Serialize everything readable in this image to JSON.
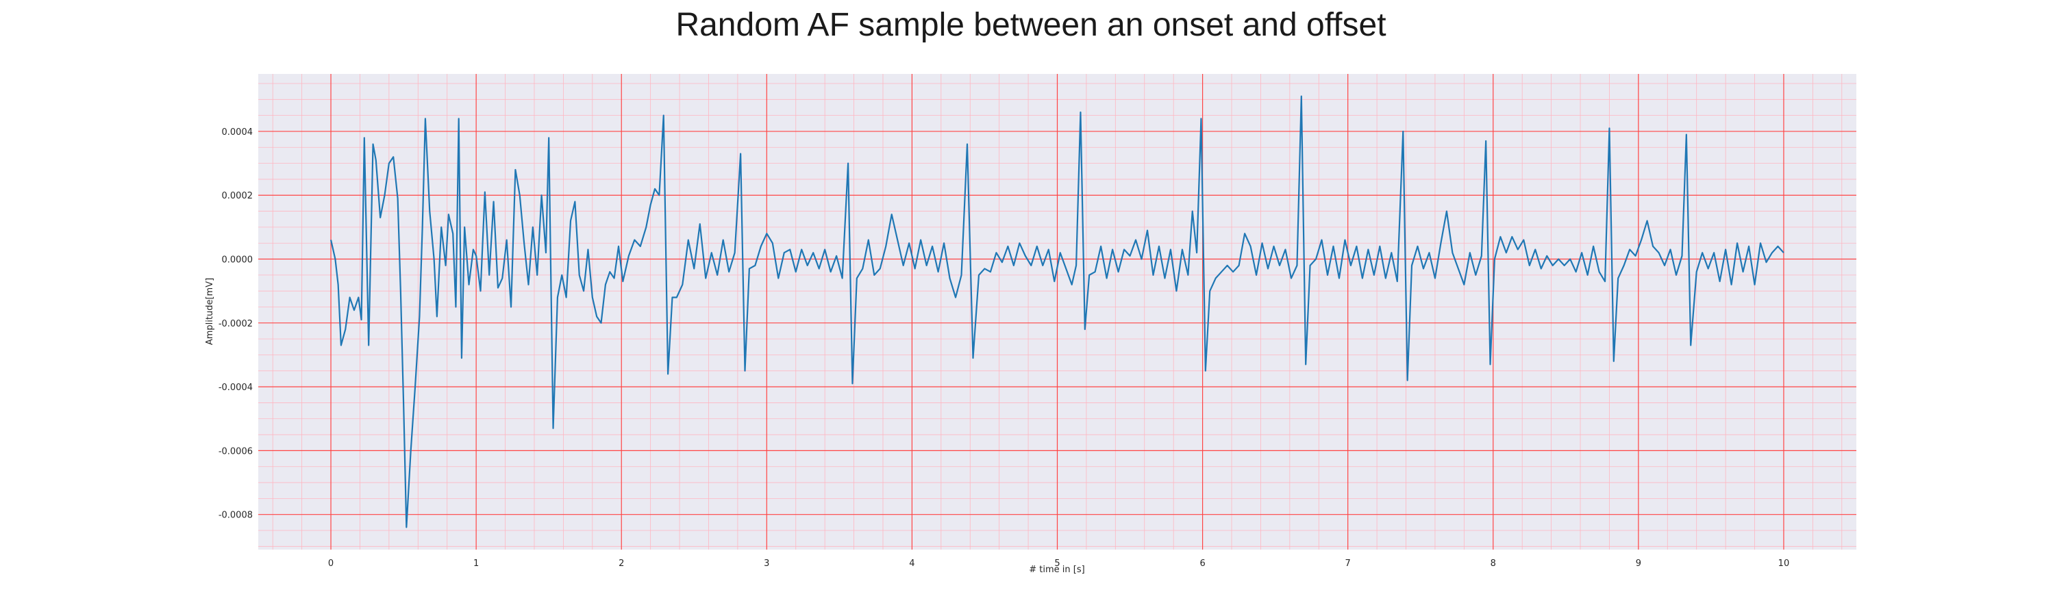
{
  "chart_data": {
    "type": "line",
    "title": "Random AF sample between an onset and offset",
    "xlabel": "# time in [s]",
    "ylabel": "Amplitude[mV]",
    "xlim": [
      -0.5,
      10.5
    ],
    "ylim": [
      -0.00091,
      0.00058
    ],
    "x_ticks": [
      0,
      1,
      2,
      3,
      4,
      5,
      6,
      7,
      8,
      9,
      10
    ],
    "x_tick_labels": [
      "0",
      "1",
      "2",
      "3",
      "4",
      "5",
      "6",
      "7",
      "8",
      "9",
      "10"
    ],
    "y_ticks": [
      0.0004,
      0.0002,
      0.0,
      -0.0002,
      -0.0004,
      -0.0006,
      -0.0008
    ],
    "y_tick_labels": [
      "0.0004",
      "0.0002",
      "0.0000",
      "-0.0002",
      "-0.0004",
      "-0.0006",
      "-0.0008"
    ],
    "grid": {
      "major": true,
      "minor": true
    },
    "colors": {
      "plot_background": "#eaeaf2",
      "major_grid": "#ff4444",
      "minor_grid": "#ffb6c1",
      "line": "#1f77b4",
      "text": "#262626"
    },
    "series": [
      {
        "points": [
          [
            0.0,
            6e-05
          ],
          [
            0.03,
            0.0
          ],
          [
            0.05,
            -8e-05
          ],
          [
            0.07,
            -0.00027
          ],
          [
            0.1,
            -0.00022
          ],
          [
            0.13,
            -0.00012
          ],
          [
            0.16,
            -0.00016
          ],
          [
            0.19,
            -0.00012
          ],
          [
            0.21,
            -0.00019
          ],
          [
            0.23,
            0.00038
          ],
          [
            0.26,
            -0.00027
          ],
          [
            0.29,
            0.00036
          ],
          [
            0.31,
            0.00031
          ],
          [
            0.34,
            0.00013
          ],
          [
            0.37,
            0.0002
          ],
          [
            0.4,
            0.0003
          ],
          [
            0.43,
            0.00032
          ],
          [
            0.46,
            0.00019
          ],
          [
            0.48,
            -0.0001
          ],
          [
            0.5,
            -0.00045
          ],
          [
            0.52,
            -0.00084
          ],
          [
            0.55,
            -0.0006
          ],
          [
            0.58,
            -0.0004
          ],
          [
            0.61,
            -0.00018
          ],
          [
            0.63,
            0.0001
          ],
          [
            0.65,
            0.00044
          ],
          [
            0.68,
            0.00015
          ],
          [
            0.71,
            0.0
          ],
          [
            0.73,
            -0.00018
          ],
          [
            0.76,
            0.0001
          ],
          [
            0.79,
            -2e-05
          ],
          [
            0.81,
            0.00014
          ],
          [
            0.84,
            8e-05
          ],
          [
            0.86,
            -0.00015
          ],
          [
            0.88,
            0.00044
          ],
          [
            0.9,
            -0.00031
          ],
          [
            0.92,
            0.0001
          ],
          [
            0.95,
            -8e-05
          ],
          [
            0.98,
            3e-05
          ],
          [
            1.0,
            1e-05
          ],
          [
            1.03,
            -0.0001
          ],
          [
            1.06,
            0.00021
          ],
          [
            1.09,
            -5e-05
          ],
          [
            1.12,
            0.00018
          ],
          [
            1.15,
            -9e-05
          ],
          [
            1.18,
            -6e-05
          ],
          [
            1.21,
            6e-05
          ],
          [
            1.24,
            -0.00015
          ],
          [
            1.27,
            0.00028
          ],
          [
            1.3,
            0.0002
          ],
          [
            1.33,
            5e-05
          ],
          [
            1.36,
            -8e-05
          ],
          [
            1.39,
            0.0001
          ],
          [
            1.42,
            -5e-05
          ],
          [
            1.45,
            0.0002
          ],
          [
            1.48,
            2e-05
          ],
          [
            1.5,
            0.00038
          ],
          [
            1.53,
            -0.00053
          ],
          [
            1.56,
            -0.00012
          ],
          [
            1.59,
            -5e-05
          ],
          [
            1.62,
            -0.00012
          ],
          [
            1.65,
            0.00012
          ],
          [
            1.68,
            0.00018
          ],
          [
            1.71,
            -5e-05
          ],
          [
            1.74,
            -0.0001
          ],
          [
            1.77,
            3e-05
          ],
          [
            1.8,
            -0.00012
          ],
          [
            1.83,
            -0.00018
          ],
          [
            1.86,
            -0.0002
          ],
          [
            1.89,
            -8e-05
          ],
          [
            1.92,
            -4e-05
          ],
          [
            1.95,
            -6e-05
          ],
          [
            1.98,
            4e-05
          ],
          [
            2.01,
            -7e-05
          ],
          [
            2.05,
            1e-05
          ],
          [
            2.09,
            6e-05
          ],
          [
            2.13,
            4e-05
          ],
          [
            2.17,
            0.0001
          ],
          [
            2.2,
            0.00017
          ],
          [
            2.23,
            0.00022
          ],
          [
            2.26,
            0.0002
          ],
          [
            2.29,
            0.00045
          ],
          [
            2.32,
            -0.00036
          ],
          [
            2.35,
            -0.00012
          ],
          [
            2.38,
            -0.00012
          ],
          [
            2.42,
            -8e-05
          ],
          [
            2.46,
            6e-05
          ],
          [
            2.5,
            -3e-05
          ],
          [
            2.54,
            0.00011
          ],
          [
            2.58,
            -6e-05
          ],
          [
            2.62,
            2e-05
          ],
          [
            2.66,
            -5e-05
          ],
          [
            2.7,
            6e-05
          ],
          [
            2.74,
            -4e-05
          ],
          [
            2.78,
            2e-05
          ],
          [
            2.82,
            0.00033
          ],
          [
            2.85,
            -0.00035
          ],
          [
            2.88,
            -3e-05
          ],
          [
            2.92,
            -2e-05
          ],
          [
            2.96,
            4e-05
          ],
          [
            3.0,
            8e-05
          ],
          [
            3.04,
            5e-05
          ],
          [
            3.08,
            -6e-05
          ],
          [
            3.12,
            2e-05
          ],
          [
            3.16,
            3e-05
          ],
          [
            3.2,
            -4e-05
          ],
          [
            3.24,
            3e-05
          ],
          [
            3.28,
            -2e-05
          ],
          [
            3.32,
            2e-05
          ],
          [
            3.36,
            -3e-05
          ],
          [
            3.4,
            3e-05
          ],
          [
            3.44,
            -4e-05
          ],
          [
            3.48,
            1e-05
          ],
          [
            3.52,
            -6e-05
          ],
          [
            3.56,
            0.0003
          ],
          [
            3.59,
            -0.00039
          ],
          [
            3.62,
            -6e-05
          ],
          [
            3.66,
            -3e-05
          ],
          [
            3.7,
            6e-05
          ],
          [
            3.74,
            -5e-05
          ],
          [
            3.78,
            -3e-05
          ],
          [
            3.82,
            4e-05
          ],
          [
            3.86,
            0.00014
          ],
          [
            3.9,
            6e-05
          ],
          [
            3.94,
            -2e-05
          ],
          [
            3.98,
            5e-05
          ],
          [
            4.02,
            -3e-05
          ],
          [
            4.06,
            6e-05
          ],
          [
            4.1,
            -2e-05
          ],
          [
            4.14,
            4e-05
          ],
          [
            4.18,
            -4e-05
          ],
          [
            4.22,
            5e-05
          ],
          [
            4.26,
            -6e-05
          ],
          [
            4.3,
            -0.00012
          ],
          [
            4.34,
            -5e-05
          ],
          [
            4.38,
            0.00036
          ],
          [
            4.42,
            -0.00031
          ],
          [
            4.46,
            -5e-05
          ],
          [
            4.5,
            -3e-05
          ],
          [
            4.54,
            -4e-05
          ],
          [
            4.58,
            2e-05
          ],
          [
            4.62,
            -1e-05
          ],
          [
            4.66,
            4e-05
          ],
          [
            4.7,
            -2e-05
          ],
          [
            4.74,
            5e-05
          ],
          [
            4.78,
            1e-05
          ],
          [
            4.82,
            -2e-05
          ],
          [
            4.86,
            4e-05
          ],
          [
            4.9,
            -2e-05
          ],
          [
            4.94,
            3e-05
          ],
          [
            4.98,
            -7e-05
          ],
          [
            5.02,
            2e-05
          ],
          [
            5.06,
            -3e-05
          ],
          [
            5.1,
            -8e-05
          ],
          [
            5.13,
            -2e-05
          ],
          [
            5.16,
            0.00046
          ],
          [
            5.19,
            -0.00022
          ],
          [
            5.22,
            -5e-05
          ],
          [
            5.26,
            -4e-05
          ],
          [
            5.3,
            4e-05
          ],
          [
            5.34,
            -6e-05
          ],
          [
            5.38,
            3e-05
          ],
          [
            5.42,
            -4e-05
          ],
          [
            5.46,
            3e-05
          ],
          [
            5.5,
            1e-05
          ],
          [
            5.54,
            6e-05
          ],
          [
            5.58,
            0.0
          ],
          [
            5.62,
            9e-05
          ],
          [
            5.66,
            -5e-05
          ],
          [
            5.7,
            4e-05
          ],
          [
            5.74,
            -6e-05
          ],
          [
            5.78,
            3e-05
          ],
          [
            5.82,
            -0.0001
          ],
          [
            5.86,
            3e-05
          ],
          [
            5.9,
            -5e-05
          ],
          [
            5.93,
            0.00015
          ],
          [
            5.96,
            2e-05
          ],
          [
            5.99,
            0.00044
          ],
          [
            6.02,
            -0.00035
          ],
          [
            6.05,
            -0.0001
          ],
          [
            6.09,
            -6e-05
          ],
          [
            6.13,
            -4e-05
          ],
          [
            6.17,
            -2e-05
          ],
          [
            6.21,
            -4e-05
          ],
          [
            6.25,
            -2e-05
          ],
          [
            6.29,
            8e-05
          ],
          [
            6.33,
            4e-05
          ],
          [
            6.37,
            -5e-05
          ],
          [
            6.41,
            5e-05
          ],
          [
            6.45,
            -3e-05
          ],
          [
            6.49,
            4e-05
          ],
          [
            6.53,
            -2e-05
          ],
          [
            6.57,
            3e-05
          ],
          [
            6.61,
            -6e-05
          ],
          [
            6.65,
            -2e-05
          ],
          [
            6.68,
            0.00051
          ],
          [
            6.71,
            -0.00033
          ],
          [
            6.74,
            -2e-05
          ],
          [
            6.78,
            0.0
          ],
          [
            6.82,
            6e-05
          ],
          [
            6.86,
            -5e-05
          ],
          [
            6.9,
            4e-05
          ],
          [
            6.94,
            -6e-05
          ],
          [
            6.98,
            6e-05
          ],
          [
            7.02,
            -2e-05
          ],
          [
            7.06,
            4e-05
          ],
          [
            7.1,
            -6e-05
          ],
          [
            7.14,
            3e-05
          ],
          [
            7.18,
            -5e-05
          ],
          [
            7.22,
            4e-05
          ],
          [
            7.26,
            -6e-05
          ],
          [
            7.3,
            2e-05
          ],
          [
            7.34,
            -7e-05
          ],
          [
            7.38,
            0.0004
          ],
          [
            7.41,
            -0.00038
          ],
          [
            7.44,
            -2e-05
          ],
          [
            7.48,
            4e-05
          ],
          [
            7.52,
            -3e-05
          ],
          [
            7.56,
            2e-05
          ],
          [
            7.6,
            -6e-05
          ],
          [
            7.64,
            5e-05
          ],
          [
            7.68,
            0.00015
          ],
          [
            7.72,
            2e-05
          ],
          [
            7.76,
            -3e-05
          ],
          [
            7.8,
            -8e-05
          ],
          [
            7.84,
            2e-05
          ],
          [
            7.88,
            -5e-05
          ],
          [
            7.92,
            1e-05
          ],
          [
            7.95,
            0.00037
          ],
          [
            7.98,
            -0.00033
          ],
          [
            8.01,
            0.0
          ],
          [
            8.05,
            7e-05
          ],
          [
            8.09,
            2e-05
          ],
          [
            8.13,
            7e-05
          ],
          [
            8.17,
            3e-05
          ],
          [
            8.21,
            6e-05
          ],
          [
            8.25,
            -2e-05
          ],
          [
            8.29,
            3e-05
          ],
          [
            8.33,
            -3e-05
          ],
          [
            8.37,
            1e-05
          ],
          [
            8.41,
            -2e-05
          ],
          [
            8.45,
            0.0
          ],
          [
            8.49,
            -2e-05
          ],
          [
            8.53,
            0.0
          ],
          [
            8.57,
            -4e-05
          ],
          [
            8.61,
            2e-05
          ],
          [
            8.65,
            -5e-05
          ],
          [
            8.69,
            4e-05
          ],
          [
            8.73,
            -4e-05
          ],
          [
            8.77,
            -7e-05
          ],
          [
            8.8,
            0.00041
          ],
          [
            8.83,
            -0.00032
          ],
          [
            8.86,
            -6e-05
          ],
          [
            8.9,
            -2e-05
          ],
          [
            8.94,
            3e-05
          ],
          [
            8.98,
            1e-05
          ],
          [
            9.02,
            6e-05
          ],
          [
            9.06,
            0.00012
          ],
          [
            9.1,
            4e-05
          ],
          [
            9.14,
            2e-05
          ],
          [
            9.18,
            -2e-05
          ],
          [
            9.22,
            3e-05
          ],
          [
            9.26,
            -5e-05
          ],
          [
            9.3,
            1e-05
          ],
          [
            9.33,
            0.00039
          ],
          [
            9.36,
            -0.00027
          ],
          [
            9.4,
            -4e-05
          ],
          [
            9.44,
            2e-05
          ],
          [
            9.48,
            -3e-05
          ],
          [
            9.52,
            2e-05
          ],
          [
            9.56,
            -7e-05
          ],
          [
            9.6,
            3e-05
          ],
          [
            9.64,
            -8e-05
          ],
          [
            9.68,
            5e-05
          ],
          [
            9.72,
            -4e-05
          ],
          [
            9.76,
            4e-05
          ],
          [
            9.8,
            -8e-05
          ],
          [
            9.84,
            5e-05
          ],
          [
            9.88,
            -1e-05
          ],
          [
            9.92,
            2e-05
          ],
          [
            9.96,
            4e-05
          ],
          [
            10.0,
            2e-05
          ]
        ]
      }
    ]
  }
}
